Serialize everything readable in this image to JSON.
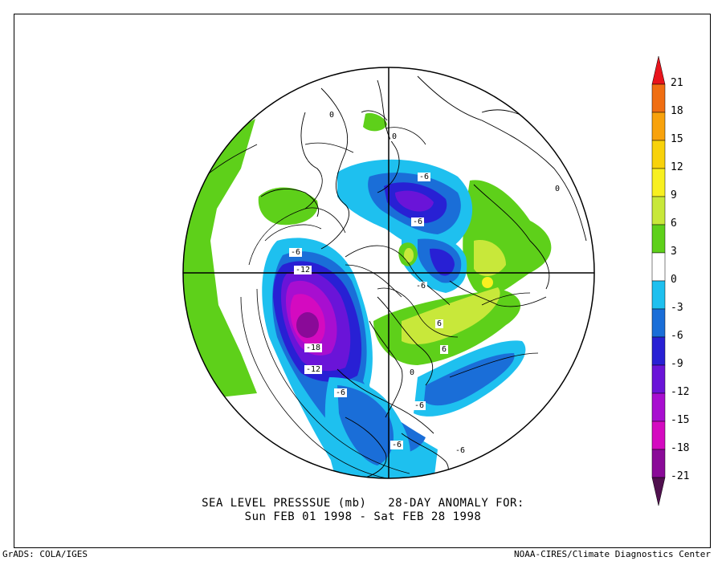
{
  "title": {
    "line1": "SEA LEVEL PRESSSUE (mb)   28-DAY ANOMALY FOR:",
    "line2": "Sun FEB 01 1998 - Sat FEB 28 1998"
  },
  "credits": {
    "left": "GrADS: COLA/IGES",
    "right": "NOAA-CIRES/Climate Diagnostics Center"
  },
  "colorbar": {
    "labels": [
      "21",
      "18",
      "15",
      "12",
      "9",
      "6",
      "3",
      "0",
      "-3",
      "-6",
      "-9",
      "-12",
      "-15",
      "-18",
      "-21"
    ],
    "colors": [
      "#e8141c",
      "#f06e12",
      "#f8a20c",
      "#f8d20a",
      "#f8f020",
      "#c8e83a",
      "#5ed01a",
      "#ffffff",
      "#1ec0ef",
      "#1a6ed8",
      "#2820d4",
      "#6a14d8",
      "#a80ed0",
      "#d40ac0",
      "#8a0a98",
      "#50104e"
    ]
  },
  "contour_labels": [
    "-6",
    "-6",
    "-12",
    "-18",
    "-12",
    "-6",
    "-6",
    "-6",
    "0",
    "0",
    "0",
    "-6",
    "-6",
    "6",
    "6",
    "-6",
    "0"
  ],
  "colors": {
    "green": "#5ed01a",
    "lime": "#c8e83a",
    "yellow": "#f8f020",
    "cyan": "#1ec0ef",
    "blue": "#1a6ed8",
    "indigo": "#2820d4",
    "violet": "#6a14d8",
    "purple": "#a80ed0",
    "magenta": "#d40ac0",
    "darkpurple": "#8a0a98"
  }
}
